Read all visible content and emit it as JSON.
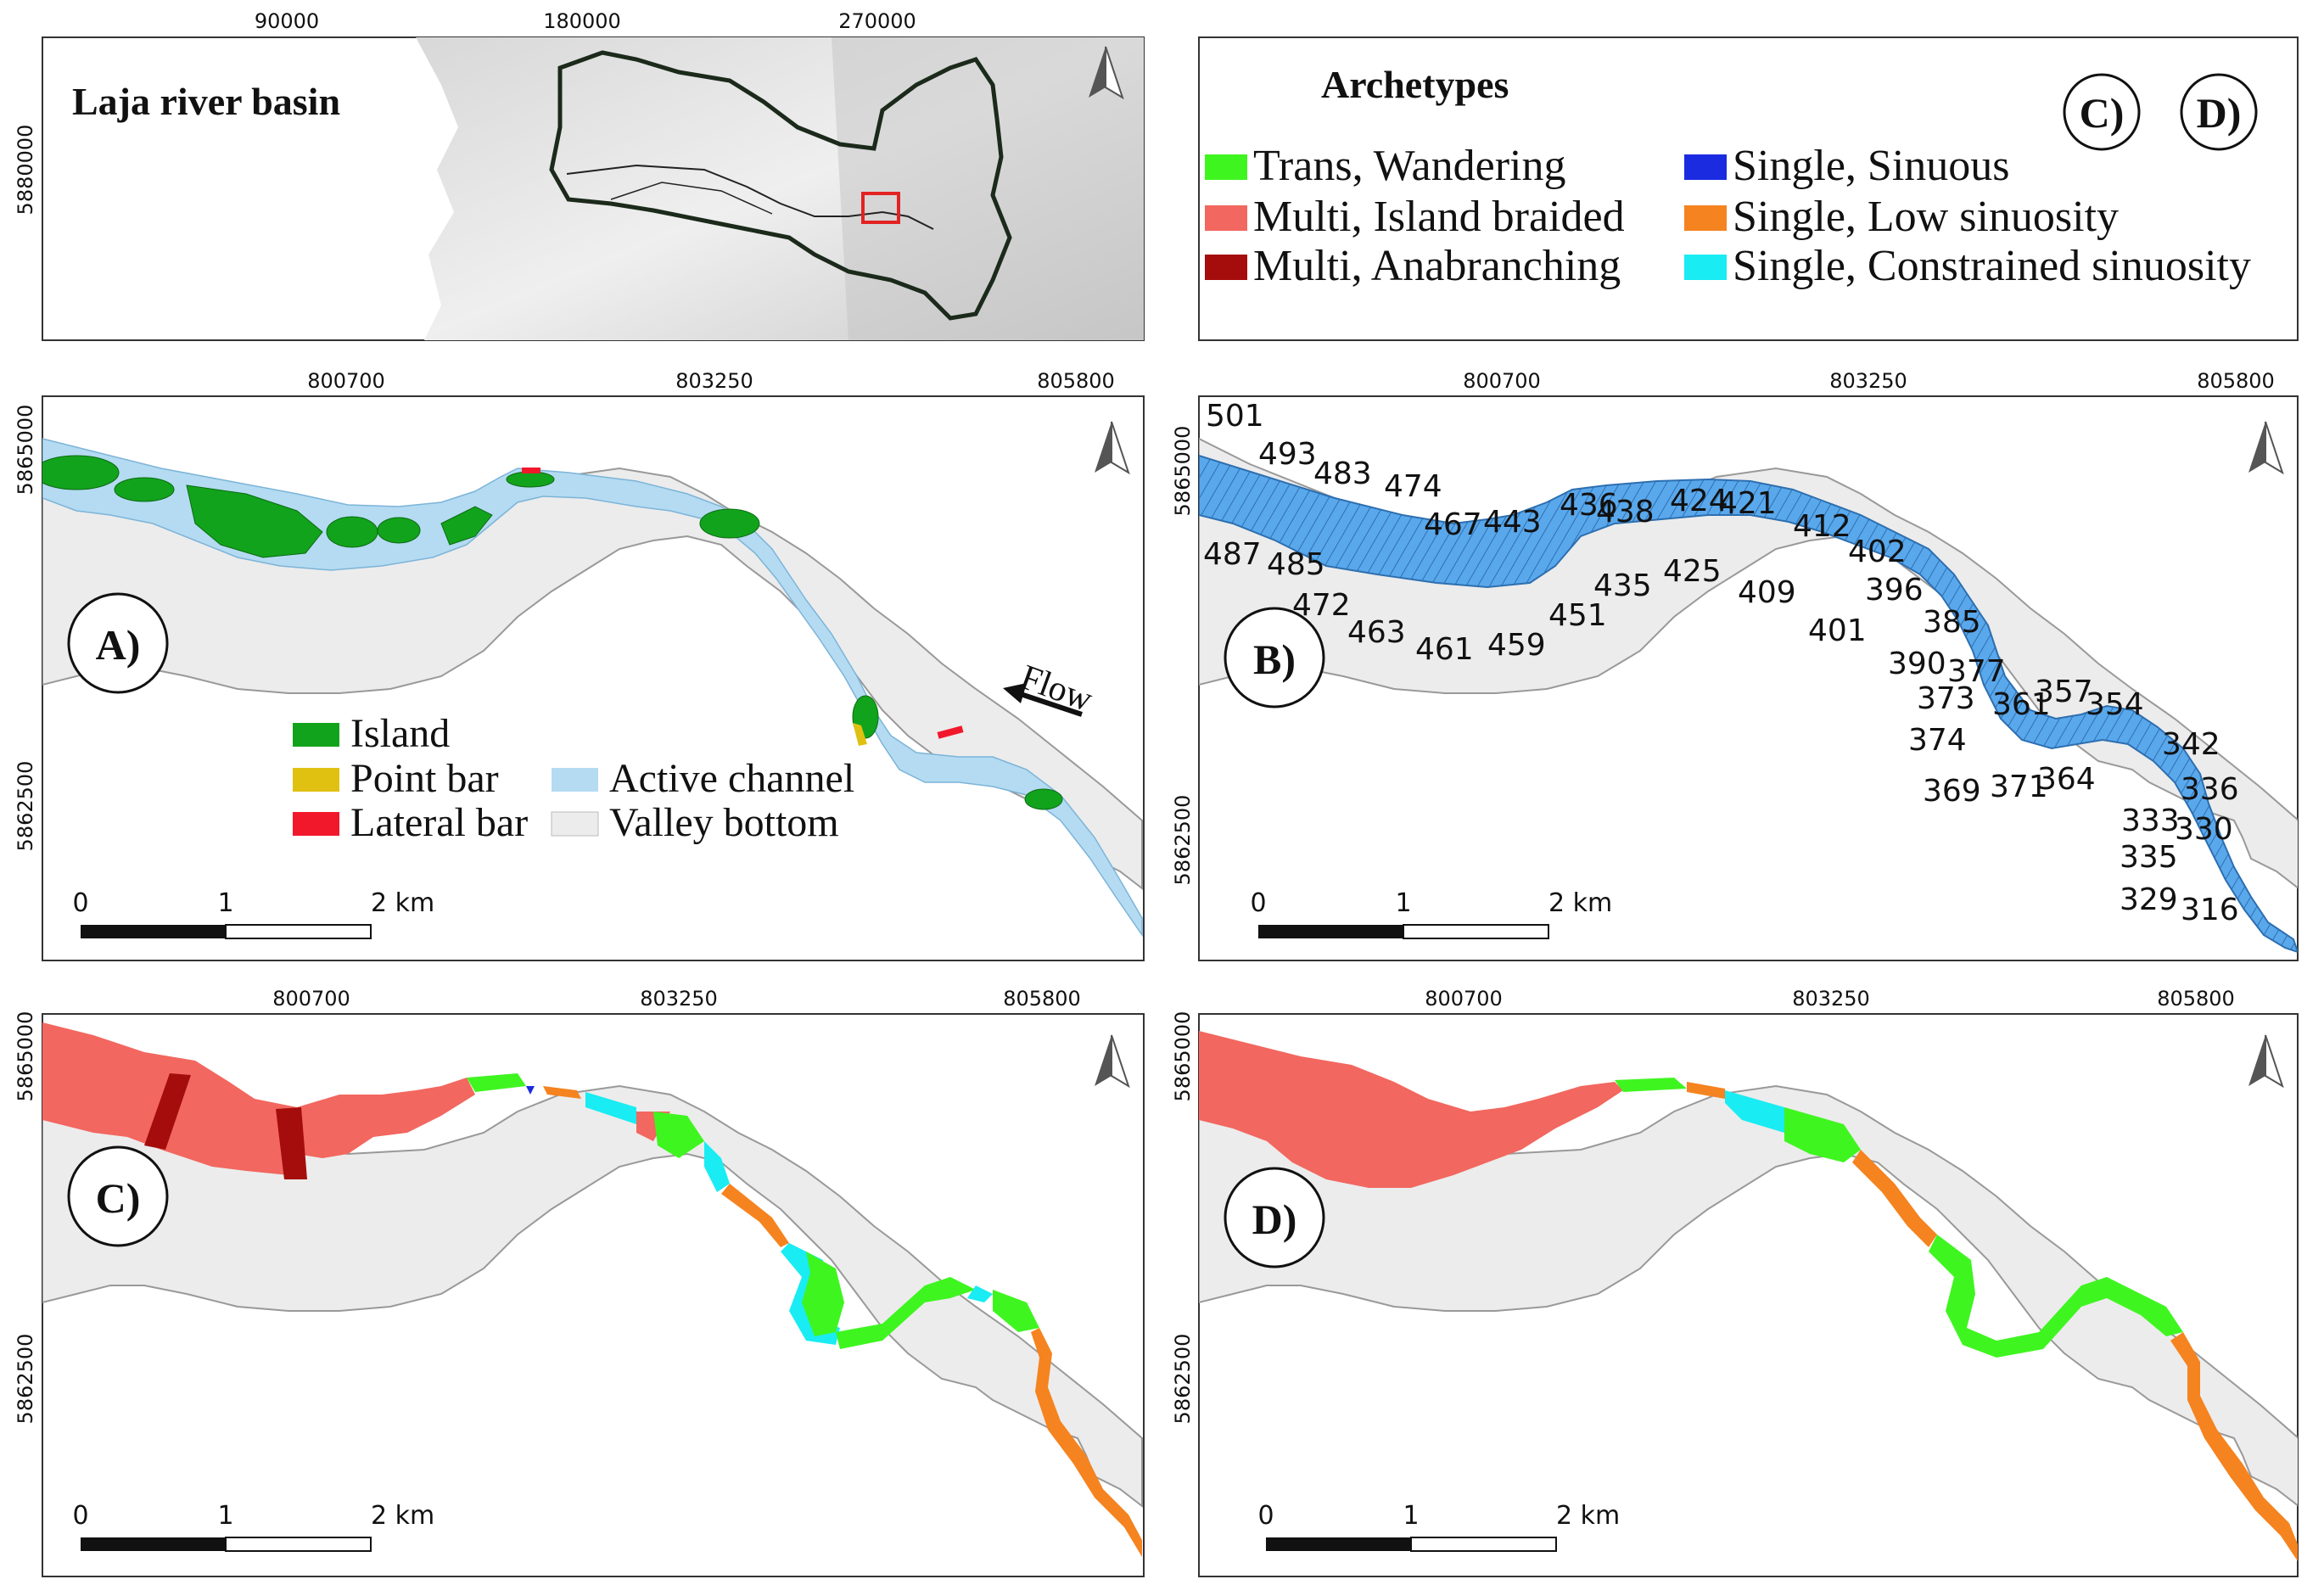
{
  "overview": {
    "title": "Laja river basin",
    "x_ticks": [
      "90000",
      "180000",
      "270000"
    ],
    "y_tick": "5880000"
  },
  "legend": {
    "title": "Archetypes",
    "badges": [
      "C)",
      "D)"
    ],
    "items": [
      {
        "label": "Trans, Wandering",
        "color": "#3ff520"
      },
      {
        "label": "Multi, Island braided",
        "color": "#f2675f"
      },
      {
        "label": "Multi, Anabranching",
        "color": "#a50d0d"
      },
      {
        "label": "Single, Sinuous",
        "color": "#1b2be0"
      },
      {
        "label": "Single, Low sinuosity",
        "color": "#f5831f"
      },
      {
        "label": "Single, Constrained sinuosity",
        "color": "#19ecf2"
      }
    ]
  },
  "panel_a": {
    "label": "A)",
    "x_ticks": [
      "800700",
      "803250",
      "805800"
    ],
    "y_ticks": [
      "5865000",
      "5862500"
    ],
    "flow_label": "Flow",
    "scale_ticks": [
      "0",
      "1",
      "2 km"
    ],
    "legend": [
      {
        "label": "Island",
        "color": "#12a31c"
      },
      {
        "label": "Point bar",
        "color": "#e0c112"
      },
      {
        "label": "Lateral bar",
        "color": "#f2182b"
      },
      {
        "label": "Active channel",
        "color": "#b4dbf2"
      },
      {
        "label": "Valley bottom",
        "color": "#ececec"
      }
    ]
  },
  "panel_b": {
    "label": "B)",
    "x_ticks": [
      "800700",
      "803250",
      "805800"
    ],
    "y_ticks": [
      "5865000",
      "5862500"
    ],
    "scale_ticks": [
      "0",
      "1",
      "2 km"
    ],
    "segments": [
      "501",
      "493",
      "483",
      "474",
      "487",
      "485",
      "472",
      "463",
      "461",
      "459",
      "467",
      "443",
      "451",
      "436",
      "438",
      "435",
      "424",
      "421",
      "425",
      "409",
      "412",
      "402",
      "401",
      "396",
      "390",
      "385",
      "377",
      "373",
      "374",
      "369",
      "371",
      "361",
      "357",
      "354",
      "364",
      "342",
      "336",
      "333",
      "330",
      "335",
      "329",
      "316"
    ]
  },
  "panel_c": {
    "label": "C)",
    "x_ticks": [
      "800700",
      "803250",
      "805800"
    ],
    "y_ticks": [
      "5865000",
      "5862500"
    ],
    "scale_ticks": [
      "0",
      "1",
      "2 km"
    ]
  },
  "panel_d": {
    "label": "D)",
    "x_ticks": [
      "800700",
      "803250",
      "805800"
    ],
    "y_ticks": [
      "5865000",
      "5862500"
    ],
    "scale_ticks": [
      "0",
      "1",
      "2 km"
    ]
  }
}
